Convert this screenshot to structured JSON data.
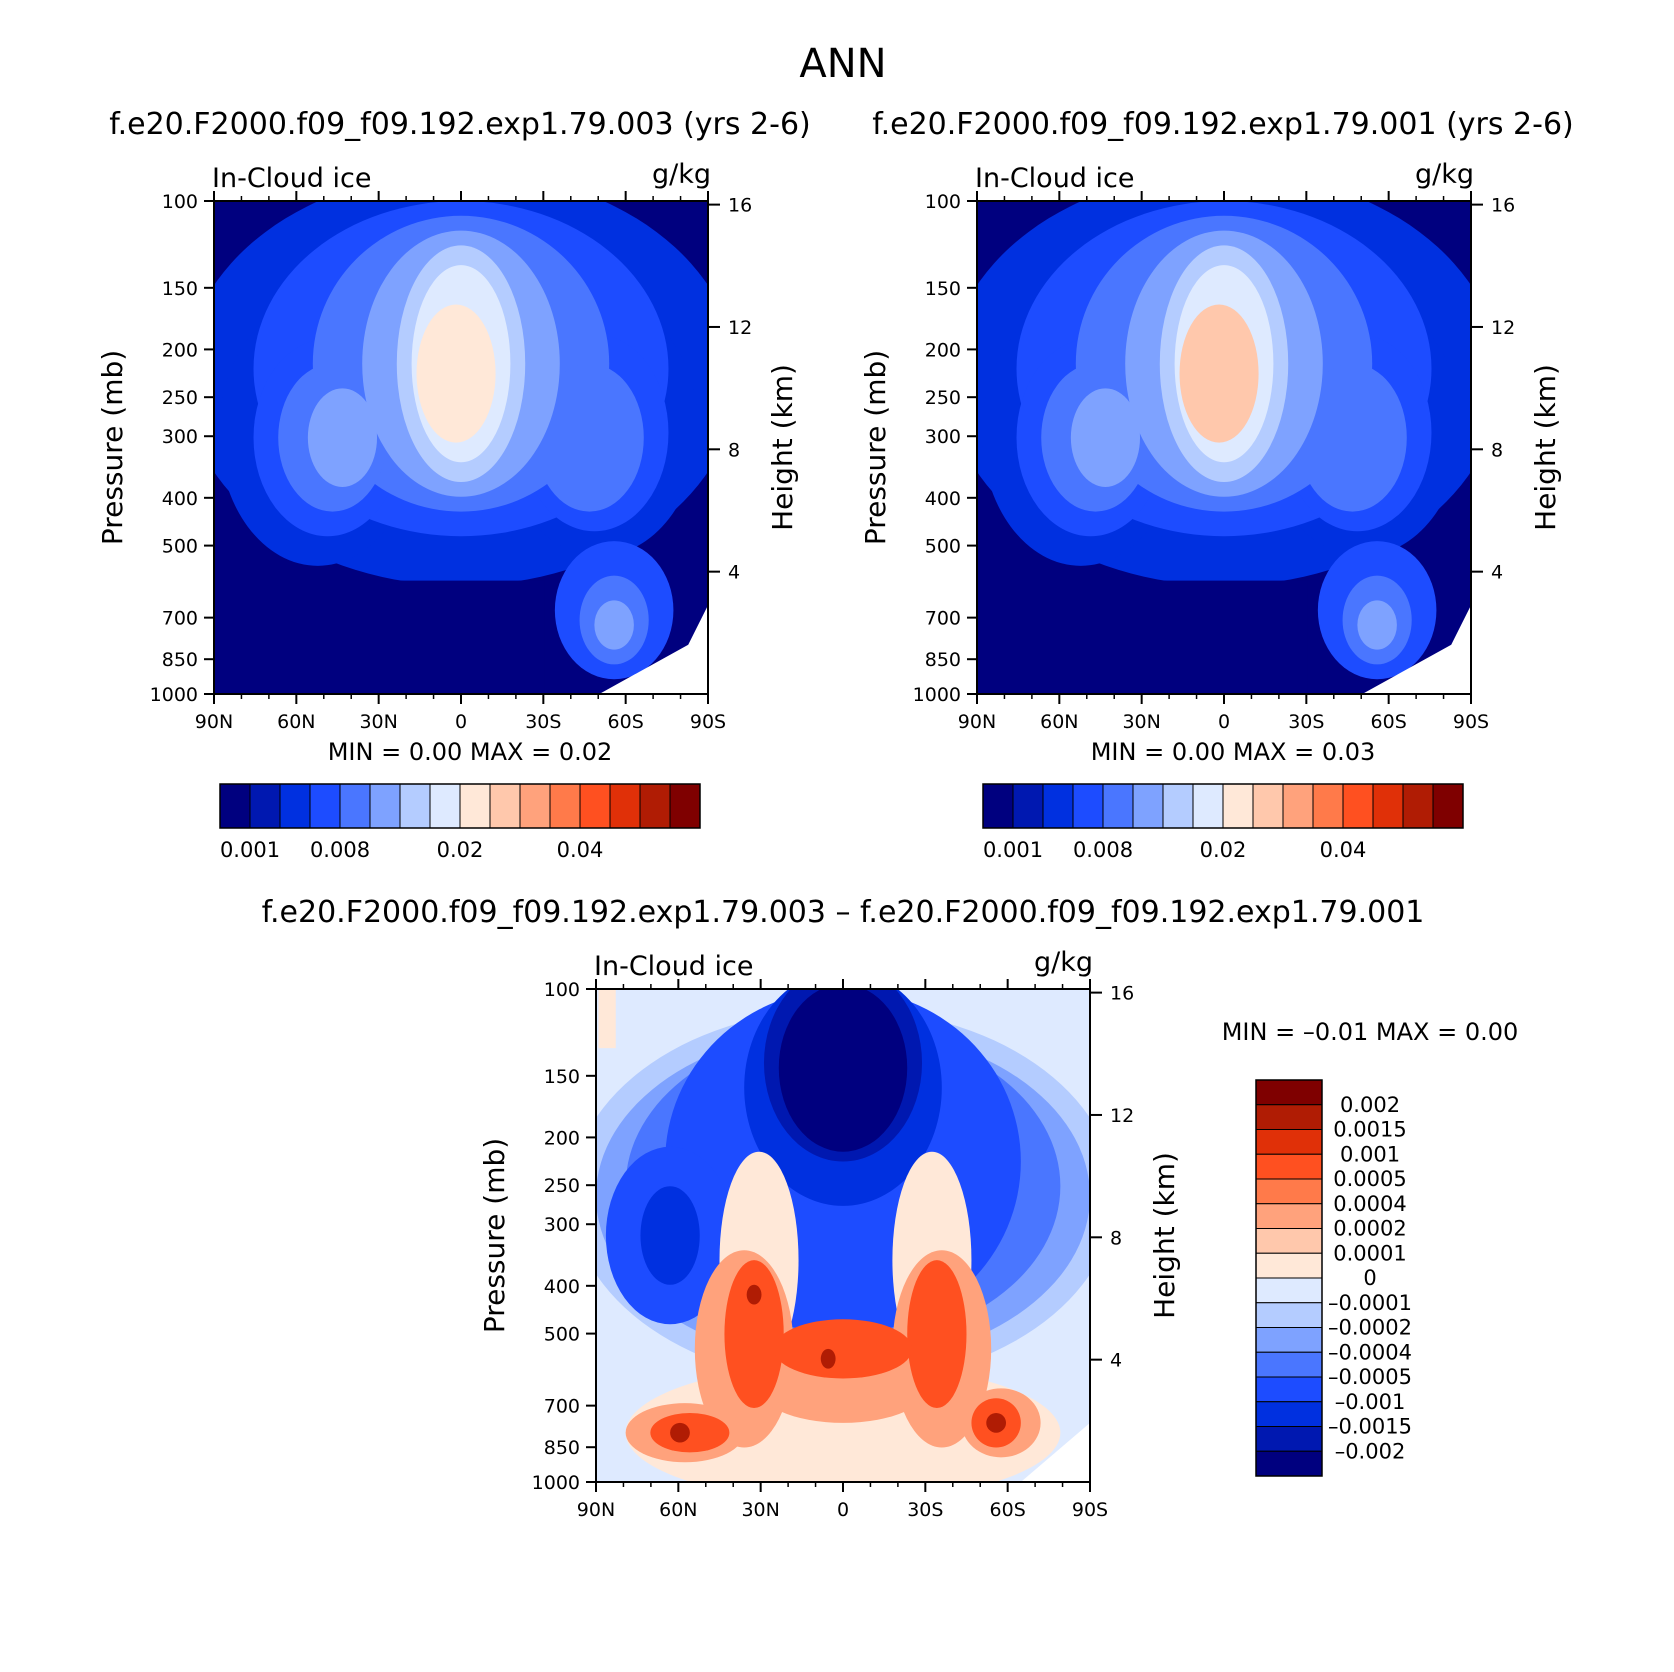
{
  "page_title": "ANN",
  "chart_data": [
    {
      "id": "test",
      "type": "heatmap",
      "subtype": "filled-contour latitude-pressure cross-section",
      "title": "f.e20.F2000.f09_f09.192.exp1.79.003 (yrs 2-6)",
      "left_label": "In-Cloud ice",
      "right_label": "g/kg",
      "xlabel": "",
      "ylabel": "Pressure (mb)",
      "y2label": "Height (km)",
      "x_ticks": [
        "90N",
        "60N",
        "30N",
        "0",
        "30S",
        "60S",
        "90S"
      ],
      "x_values": [
        90,
        60,
        30,
        0,
        -30,
        -60,
        -90
      ],
      "y_ticks": [
        "100",
        "150",
        "200",
        "250",
        "300",
        "400",
        "500",
        "700",
        "850",
        "1000"
      ],
      "y_values": [
        100,
        150,
        200,
        250,
        300,
        400,
        500,
        700,
        850,
        1000
      ],
      "y2_ticks": [
        "16",
        "12",
        "8",
        "4"
      ],
      "y2_values": [
        16,
        12,
        8,
        4
      ],
      "ylim": [
        1000,
        100
      ],
      "min_label": "MIN =",
      "min_value": "0.00",
      "max_label": "MAX =",
      "max_value": "0.02",
      "colorbar": {
        "colors": [
          "#00007f",
          "#0018b0",
          "#0030e0",
          "#1d4cff",
          "#4a76ff",
          "#7ea2ff",
          "#b4ccff",
          "#deeaff",
          "#ffe8d8",
          "#ffc8ac",
          "#ffa27c",
          "#ff7a4a",
          "#ff5020",
          "#e03008",
          "#b01c04",
          "#7f0000"
        ],
        "tick_labels": [
          "0.001",
          "0.008",
          "0.02",
          "0.04"
        ]
      }
    },
    {
      "id": "control",
      "type": "heatmap",
      "subtype": "filled-contour latitude-pressure cross-section",
      "title": "f.e20.F2000.f09_f09.192.exp1.79.001 (yrs 2-6)",
      "left_label": "In-Cloud ice",
      "right_label": "g/kg",
      "xlabel": "",
      "ylabel": "Pressure (mb)",
      "y2label": "Height (km)",
      "x_ticks": [
        "90N",
        "60N",
        "30N",
        "0",
        "30S",
        "60S",
        "90S"
      ],
      "x_values": [
        90,
        60,
        30,
        0,
        -30,
        -60,
        -90
      ],
      "y_ticks": [
        "100",
        "150",
        "200",
        "250",
        "300",
        "400",
        "500",
        "700",
        "850",
        "1000"
      ],
      "y_values": [
        100,
        150,
        200,
        250,
        300,
        400,
        500,
        700,
        850,
        1000
      ],
      "y2_ticks": [
        "16",
        "12",
        "8",
        "4"
      ],
      "y2_values": [
        16,
        12,
        8,
        4
      ],
      "ylim": [
        1000,
        100
      ],
      "min_label": "MIN =",
      "min_value": "0.00",
      "max_label": "MAX =",
      "max_value": "0.03",
      "colorbar": {
        "colors": [
          "#00007f",
          "#0018b0",
          "#0030e0",
          "#1d4cff",
          "#4a76ff",
          "#7ea2ff",
          "#b4ccff",
          "#deeaff",
          "#ffe8d8",
          "#ffc8ac",
          "#ffa27c",
          "#ff7a4a",
          "#ff5020",
          "#e03008",
          "#b01c04",
          "#7f0000"
        ],
        "tick_labels": [
          "0.001",
          "0.008",
          "0.02",
          "0.04"
        ]
      }
    },
    {
      "id": "difference",
      "type": "heatmap",
      "subtype": "filled-contour latitude-pressure cross-section",
      "title": "f.e20.F2000.f09_f09.192.exp1.79.003 – f.e20.F2000.f09_f09.192.exp1.79.001",
      "left_label": "In-Cloud ice",
      "right_label": "g/kg",
      "xlabel": "",
      "ylabel": "Pressure (mb)",
      "y2label": "Height (km)",
      "x_ticks": [
        "90N",
        "60N",
        "30N",
        "0",
        "30S",
        "60S",
        "90S"
      ],
      "x_values": [
        90,
        60,
        30,
        0,
        -30,
        -60,
        -90
      ],
      "y_ticks": [
        "100",
        "150",
        "200",
        "250",
        "300",
        "400",
        "500",
        "700",
        "850",
        "1000"
      ],
      "y_values": [
        100,
        150,
        200,
        250,
        300,
        400,
        500,
        700,
        850,
        1000
      ],
      "y2_ticks": [
        "16",
        "12",
        "8",
        "4"
      ],
      "y2_values": [
        16,
        12,
        8,
        4
      ],
      "ylim": [
        1000,
        100
      ],
      "min_label": "MIN =",
      "min_value": "–0.01",
      "max_label": "MAX =",
      "max_value": "0.00",
      "colorbar": {
        "colors": [
          "#7f0000",
          "#b01c04",
          "#e03008",
          "#ff5020",
          "#ff7a4a",
          "#ffa27c",
          "#ffc8ac",
          "#ffe8d8",
          "#deeaff",
          "#b4ccff",
          "#7ea2ff",
          "#4a76ff",
          "#1d4cff",
          "#0030e0",
          "#0018b0",
          "#00007f"
        ],
        "tick_labels": [
          "0.002",
          "0.0015",
          "0.001",
          "0.0005",
          "0.0004",
          "0.0002",
          "0.0001",
          "0",
          "–0.0001",
          "–0.0002",
          "–0.0004",
          "–0.0005",
          "–0.001",
          "–0.0015",
          "–0.002"
        ]
      }
    }
  ]
}
